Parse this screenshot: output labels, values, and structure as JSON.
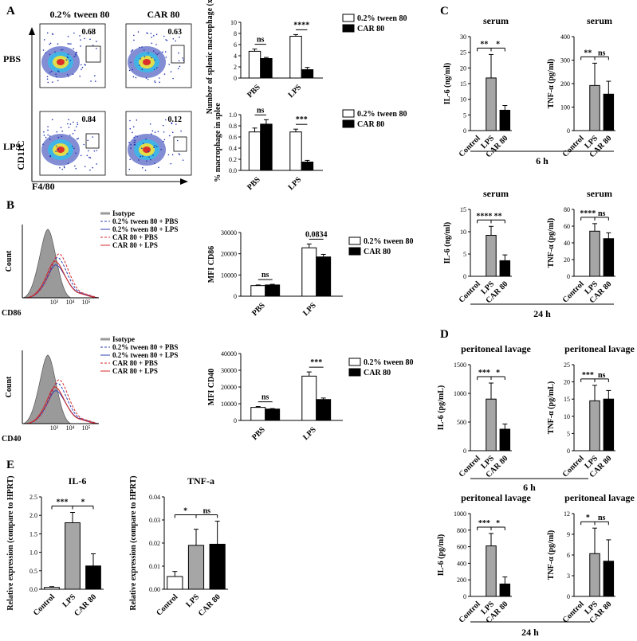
{
  "colors": {
    "white_bar": "#ffffff",
    "black_bar": "#000000",
    "gray_bar": "#a6a6a6",
    "isotype": "#9a9a9a",
    "blue": "#2f3fb3",
    "red": "#d42a2a",
    "dot_blue": "#1e2fb0",
    "dot_cyan": "#2fbfe8",
    "dot_yellow": "#f3e23a",
    "dot_red": "#d9262a"
  },
  "panel_labels": {
    "A": "A",
    "B": "B",
    "C": "C",
    "D": "D",
    "E": "E"
  },
  "flow": {
    "col_headers": [
      "0.2% tween 80",
      "CAR 80"
    ],
    "row_labels": [
      "PBS",
      "LPS"
    ],
    "gate_values": [
      "0.68",
      "0.63",
      "0.84",
      "0.12"
    ],
    "y_axis": "CD11C",
    "x_axis": "F4/80"
  },
  "histograms": [
    {
      "x_label": "CD86",
      "y_label": "Count",
      "ticks": [
        "10³",
        "10⁴",
        "10⁵"
      ],
      "legend": [
        "Isotype",
        "0.2% tween 80 + PBS",
        "0.2% tween 80 + LPS",
        "CAR 80 + PBS",
        "CAR 80 + LPS"
      ]
    },
    {
      "x_label": "CD40",
      "y_label": "Count",
      "ticks": [
        "10³",
        "10⁴",
        "10⁵"
      ],
      "legend": [
        "Isotype",
        "0.2% tween 80 + PBS",
        "0.2% tween 80 + LPS",
        "CAR 80 + PBS",
        "CAR 80 + LPS"
      ]
    }
  ],
  "chart_data": [
    {
      "id": "A1",
      "panel": "A",
      "type": "bar",
      "categories": [
        "PBS",
        "LPS"
      ],
      "series": [
        {
          "name": "0.2% tween 80",
          "values": [
            4.8,
            7.5
          ],
          "err": [
            0.4,
            0.3
          ]
        },
        {
          "name": "CAR 80",
          "values": [
            3.5,
            1.5
          ],
          "err": [
            0.2,
            0.4
          ]
        }
      ],
      "ylabel": "Number of splenic macrophage (x10⁵)",
      "ylim": [
        0,
        10
      ],
      "yticks": [
        "0",
        "2",
        "4",
        "6",
        "8",
        "10"
      ],
      "annotations": [
        {
          "text": "ns"
        },
        {
          "text": "****"
        }
      ]
    },
    {
      "id": "A2",
      "panel": "A",
      "type": "bar",
      "categories": [
        "PBS",
        "LPS"
      ],
      "series": [
        {
          "name": "0.2% tween 80",
          "values": [
            0.69,
            0.69
          ],
          "err": [
            0.07,
            0.05
          ]
        },
        {
          "name": "CAR 80",
          "values": [
            0.83,
            0.15
          ],
          "err": [
            0.08,
            0.03
          ]
        }
      ],
      "ylabel": "% macrophage in splee",
      "ylim": [
        0,
        1.0
      ],
      "yticks": [
        "0.0",
        "0.2",
        "0.4",
        "0.6",
        "0.8",
        "1.0"
      ],
      "annotations": [
        {
          "text": "ns"
        },
        {
          "text": "***"
        }
      ]
    },
    {
      "id": "B1",
      "panel": "B",
      "type": "bar",
      "categories": [
        "PBS",
        "LPS"
      ],
      "series": [
        {
          "name": "0.2% tween 80",
          "values": [
            5000,
            22800
          ],
          "err": [
            300,
            1800
          ]
        },
        {
          "name": "CAR 80",
          "values": [
            5300,
            18500
          ],
          "err": [
            300,
            1200
          ]
        }
      ],
      "ylabel": "MFI CD86",
      "ylim": [
        0,
        30000
      ],
      "yticks": [
        "0",
        "10000",
        "20000",
        "30000"
      ],
      "annotations": [
        {
          "text": "ns"
        },
        {
          "text": "0.0834"
        }
      ]
    },
    {
      "id": "B2",
      "panel": "B",
      "type": "bar",
      "categories": [
        "PBS",
        "LPS"
      ],
      "series": [
        {
          "name": "0.2% tween 80",
          "values": [
            7800,
            26500
          ],
          "err": [
            500,
            2500
          ]
        },
        {
          "name": "CAR 80",
          "values": [
            6800,
            12500
          ],
          "err": [
            300,
            900
          ]
        }
      ],
      "ylabel": "MFI CD40",
      "ylim": [
        0,
        40000
      ],
      "yticks": [
        "0",
        "10000",
        "20000",
        "30000",
        "40000"
      ],
      "annotations": [
        {
          "text": "ns"
        },
        {
          "text": "***"
        }
      ]
    },
    {
      "id": "C1",
      "panel": "C",
      "type": "bar",
      "title": "serum",
      "categories": [
        "Control",
        "LPS",
        "CAR 80"
      ],
      "values": [
        0,
        16.8,
        6.5
      ],
      "err": [
        0,
        7.5,
        1.5
      ],
      "ylabel": "IL-6 (ng/ml)",
      "ylim": [
        0,
        30
      ],
      "yticks": [
        "0",
        "5",
        "10",
        "15",
        "20",
        "25",
        "30"
      ],
      "annotations": [
        {
          "text": "**"
        },
        {
          "text": "*"
        }
      ],
      "group_label": "6 h"
    },
    {
      "id": "C2",
      "panel": "C",
      "type": "bar",
      "title": "serum",
      "categories": [
        "Control",
        "LPS",
        "CAR 80"
      ],
      "values": [
        0,
        192,
        155
      ],
      "err": [
        0,
        95,
        55
      ],
      "ylabel": "TNF-α (pg/ml)",
      "ylim": [
        0,
        400
      ],
      "yticks": [
        "0",
        "100",
        "200",
        "300",
        "400"
      ],
      "annotations": [
        {
          "text": "**"
        },
        {
          "text": "ns"
        }
      ]
    },
    {
      "id": "C3",
      "panel": "C",
      "type": "bar",
      "title": "serum",
      "categories": [
        "Control",
        "LPS",
        "CAR 80"
      ],
      "values": [
        0,
        9.2,
        3.5
      ],
      "err": [
        0,
        2.0,
        1.3
      ],
      "ylabel": "IL-6 (ng/ml)",
      "ylim": [
        0,
        15
      ],
      "yticks": [
        "0",
        "5",
        "10",
        "15"
      ],
      "annotations": [
        {
          "text": "****"
        },
        {
          "text": "**"
        }
      ],
      "group_label": "24 h"
    },
    {
      "id": "C4",
      "panel": "C",
      "type": "bar",
      "title": "serum",
      "categories": [
        "Control",
        "LPS",
        "CAR 80"
      ],
      "values": [
        0,
        54,
        45
      ],
      "err": [
        0,
        9,
        7
      ],
      "ylabel": "TNF-α (pg/ml)",
      "ylim": [
        0,
        80
      ],
      "yticks": [
        "0",
        "20",
        "40",
        "60",
        "80"
      ],
      "annotations": [
        {
          "text": "****"
        },
        {
          "text": "ns"
        }
      ]
    },
    {
      "id": "D1",
      "panel": "D",
      "type": "bar",
      "title": "peritoneal lavage",
      "categories": [
        "Control",
        "LPS",
        "CAR 80"
      ],
      "values": [
        0,
        900,
        375
      ],
      "err": [
        0,
        280,
        90
      ],
      "ylabel": "IL-6 (pg/mL)",
      "ylim": [
        0,
        1500
      ],
      "yticks": [
        "0",
        "500",
        "1000",
        "1500"
      ],
      "annotations": [
        {
          "text": "***"
        },
        {
          "text": "*"
        }
      ],
      "group_label": "6 h"
    },
    {
      "id": "D2",
      "panel": "D",
      "type": "bar",
      "title": "peritoneal lavage",
      "categories": [
        "Control",
        "LPS",
        "CAR 80"
      ],
      "values": [
        0,
        14.5,
        15
      ],
      "err": [
        0,
        4.5,
        2.5
      ],
      "ylabel": "TNF-α (pg/mL)",
      "ylim": [
        0,
        25
      ],
      "yticks": [
        "0",
        "5",
        "10",
        "15",
        "20",
        "25"
      ],
      "annotations": [
        {
          "text": "***"
        },
        {
          "text": "ns"
        }
      ]
    },
    {
      "id": "D3",
      "panel": "D",
      "type": "bar",
      "title": "peritoneal lavage",
      "categories": [
        "Control",
        "LPS",
        "CAR 80"
      ],
      "values": [
        0,
        610,
        150
      ],
      "err": [
        0,
        150,
        85
      ],
      "ylabel": "IL-6 (pg/ml)",
      "ylim": [
        0,
        1000
      ],
      "yticks": [
        "0",
        "200",
        "400",
        "600",
        "800",
        "1000"
      ],
      "annotations": [
        {
          "text": "***"
        },
        {
          "text": "*"
        }
      ],
      "group_label": "24 h"
    },
    {
      "id": "D4",
      "panel": "D",
      "type": "bar",
      "title": "peritoneal lavage",
      "categories": [
        "Control",
        "LPS",
        "CAR 80"
      ],
      "values": [
        0,
        6.2,
        5.1
      ],
      "err": [
        0,
        3.7,
        3.1
      ],
      "ylabel": "TNF-α (pg/ml)",
      "ylim": [
        0,
        12
      ],
      "yticks": [
        "0",
        "3",
        "6",
        "9",
        "12"
      ],
      "annotations": [
        {
          "text": "*"
        },
        {
          "text": "ns"
        }
      ]
    },
    {
      "id": "E1",
      "panel": "E",
      "type": "bar",
      "title": "IL-6",
      "categories": [
        "Control",
        "LPS",
        "CAR 80"
      ],
      "values": [
        0.05,
        1.8,
        0.63
      ],
      "err": [
        0.02,
        0.28,
        0.33
      ],
      "ylabel": "Relative expression (compare to HPRT)",
      "ylim": [
        0,
        2.5
      ],
      "yticks": [
        "0.0",
        "0.5",
        "1.0",
        "1.5",
        "2.0",
        "2.5"
      ],
      "annotations": [
        {
          "text": "***"
        },
        {
          "text": "*"
        }
      ]
    },
    {
      "id": "E2",
      "panel": "E",
      "type": "bar",
      "title": "TNF-a",
      "categories": [
        "Control",
        "LPS",
        "CAR 80"
      ],
      "values": [
        0.0055,
        0.019,
        0.0195
      ],
      "err": [
        0.0022,
        0.007,
        0.01
      ],
      "ylabel": "Relative expression (compare to HPRT)",
      "ylim": [
        0,
        0.04
      ],
      "yticks": [
        "0.00",
        "0.01",
        "0.02",
        "0.03",
        "0.04"
      ],
      "annotations": [
        {
          "text": "*"
        },
        {
          "text": "ns"
        }
      ]
    }
  ]
}
